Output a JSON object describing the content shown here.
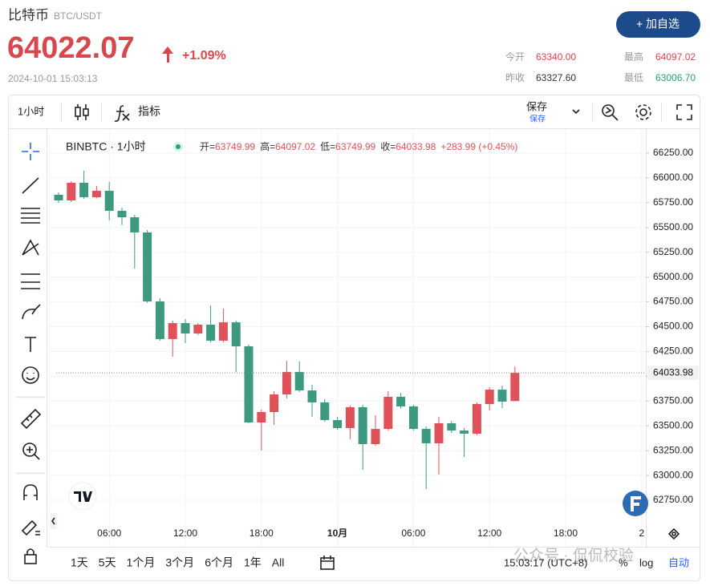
{
  "header": {
    "name": "比特币",
    "pair": "BTC/USDT",
    "price": "64022.07",
    "change": "+1.09%",
    "timestamp": "2024-10-01 15:03:13",
    "watch_button": "+ 加自选",
    "stats": [
      {
        "label": "今开",
        "value": "63340.00"
      },
      {
        "label": "最高",
        "value": "64097.02"
      },
      {
        "label": "昨收",
        "value": "63327.60"
      },
      {
        "label": "最低",
        "value": "63006.70"
      }
    ]
  },
  "toolbar": {
    "interval": "1小时",
    "indicators": "指标",
    "save": "保存",
    "save_sub": "保存"
  },
  "chart_data": {
    "type": "candlestick",
    "symbol": "BINBTC · 1小时",
    "legend": [
      {
        "label": "开=",
        "value": "63749.99"
      },
      {
        "label": "高=",
        "value": "64097.02"
      },
      {
        "label": "低=",
        "value": "63749.99"
      },
      {
        "label": "收=",
        "value": "64033.98"
      }
    ],
    "legend_change": "+283.99 (+0.45%)",
    "colors": {
      "up": "#e0525a",
      "down": "#3d9a80"
    },
    "categories": [
      null,
      null,
      null,
      null,
      "06:00",
      null,
      null,
      null,
      null,
      null,
      "12:00",
      null,
      null,
      null,
      null,
      null,
      "18:00",
      null,
      null,
      null,
      null,
      null,
      "10月",
      null,
      null,
      null,
      null,
      null,
      "06:00",
      null,
      null,
      null,
      null,
      null,
      "12:00",
      null,
      null,
      null,
      null,
      null,
      "18:00",
      null,
      null,
      null,
      null,
      null,
      "2"
    ],
    "open": [
      65830,
      65773,
      65951,
      65805,
      65870,
      65668,
      65603,
      65450,
      64755,
      64375,
      64536,
      64431,
      64520,
      64359,
      64544,
      64302,
      63534,
      63639,
      63817,
      64043,
      63857,
      63736,
      63558,
      63478,
      63688,
      63316,
      63469,
      63793,
      63696,
      63469,
      63324,
      63526,
      63453,
      63421,
      63720,
      63865,
      63749.99,
      null,
      null,
      null,
      null,
      null,
      null,
      null,
      null,
      null,
      null
    ],
    "high": [
      65854,
      65967,
      66072,
      65919,
      65959,
      65700,
      65628,
      65474,
      64787,
      64561,
      64577,
      64536,
      64714,
      64682,
      64561,
      64318,
      63663,
      63849,
      64156,
      64150,
      63914,
      63769,
      63591,
      63704,
      63712,
      63607,
      63849,
      63833,
      63712,
      63494,
      63591,
      63550,
      63478,
      63736,
      63890,
      63906,
      64097.02,
      null,
      null,
      null,
      null,
      null,
      null,
      null,
      null,
      null,
      null
    ],
    "low": [
      65749,
      65757,
      65789,
      65797,
      65571,
      65523,
      65086,
      64739,
      64359,
      64197,
      64334,
      64415,
      64342,
      64342,
      64043,
      63526,
      63251,
      63510,
      63777,
      63841,
      63591,
      63542,
      63461,
      63364,
      63057,
      63300,
      63453,
      63672,
      63453,
      62863,
      63009,
      63429,
      63187,
      63405,
      63656,
      63680,
      63749.99,
      null,
      null,
      null,
      null,
      null,
      null,
      null,
      null,
      null,
      null
    ],
    "close": [
      65773,
      65951,
      65805,
      65870,
      65668,
      65603,
      65450,
      64755,
      64375,
      64536,
      64431,
      64520,
      64359,
      64544,
      64302,
      63534,
      63639,
      63817,
      64043,
      63857,
      63736,
      63558,
      63478,
      63688,
      63316,
      63469,
      63793,
      63696,
      63469,
      63324,
      63526,
      63453,
      63421,
      63720,
      63865,
      63744,
      64033.98,
      null,
      null,
      null,
      null,
      null,
      null,
      null,
      null,
      null,
      null
    ],
    "ylim": [
      62540,
      66460
    ],
    "yticks": [
      {
        "value": 62750,
        "label": "62750.00"
      },
      {
        "value": 63000,
        "label": "63000.00"
      },
      {
        "value": 63250,
        "label": "63250.00"
      },
      {
        "value": 63500,
        "label": "63500.00"
      },
      {
        "value": 63750,
        "label": "63750.00"
      },
      {
        "value": 64000,
        "label": "64000.00"
      },
      {
        "value": 64250,
        "label": "64250.00"
      },
      {
        "value": 64500,
        "label": "64500.00"
      },
      {
        "value": 64750,
        "label": "64750.00"
      },
      {
        "value": 65000,
        "label": "65000.00"
      },
      {
        "value": 65250,
        "label": "65250.00"
      },
      {
        "value": 65500,
        "label": "65500.00"
      },
      {
        "value": 65750,
        "label": "65750.00"
      },
      {
        "value": 66000,
        "label": "66000.00"
      },
      {
        "value": 66250,
        "label": "66250.00"
      }
    ],
    "grid": true
  },
  "footer": {
    "ranges": [
      "1天",
      "5天",
      "1个月",
      "3个月",
      "6个月",
      "1年",
      "All"
    ],
    "clock": "15:03:17 (UTC+8)",
    "percent": "%",
    "log": "log",
    "auto": "自动",
    "watermark": "公众号 · 侃侃校验"
  }
}
